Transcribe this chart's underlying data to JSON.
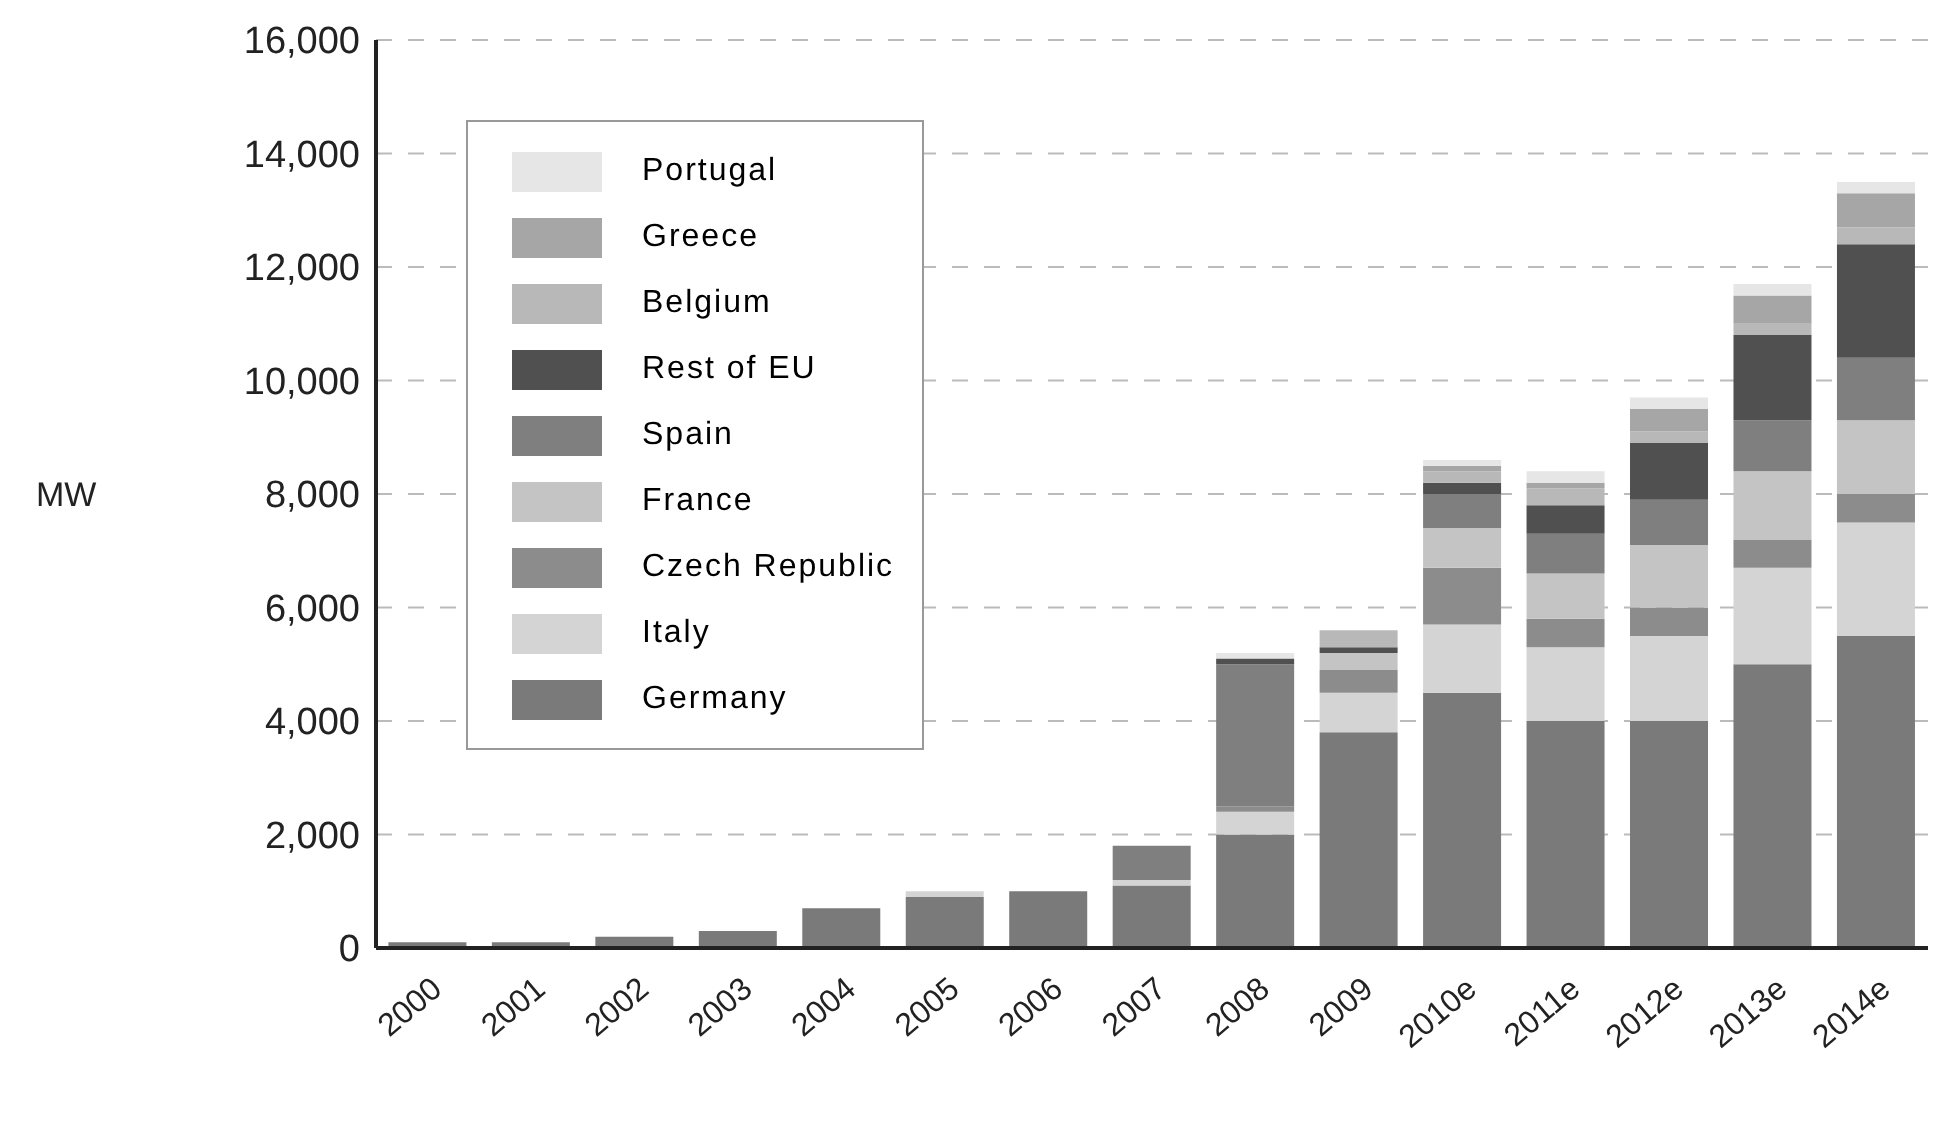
{
  "chart_data": {
    "type": "bar",
    "stacked": true,
    "ylabel": "MW",
    "categories": [
      "2000",
      "2001",
      "2002",
      "2003",
      "2004",
      "2005",
      "2006",
      "2007",
      "2008",
      "2009",
      "2010e",
      "2011e",
      "2012e",
      "2013e",
      "2014e"
    ],
    "series": [
      {
        "name": "Germany",
        "color": "#7a7a7a",
        "values": [
          100,
          100,
          200,
          300,
          700,
          900,
          1000,
          1100,
          2000,
          3800,
          4500,
          4000,
          4000,
          5000,
          5500
        ]
      },
      {
        "name": "Italy",
        "color": "#d4d4d4",
        "values": [
          0,
          0,
          0,
          0,
          0,
          100,
          0,
          100,
          400,
          700,
          1200,
          1300,
          1500,
          1700,
          2000
        ]
      },
      {
        "name": "Czech Republic",
        "color": "#8c8c8c",
        "values": [
          0,
          0,
          0,
          0,
          0,
          0,
          0,
          0,
          100,
          400,
          1000,
          500,
          500,
          500,
          500
        ]
      },
      {
        "name": "France",
        "color": "#c4c4c4",
        "values": [
          0,
          0,
          0,
          0,
          0,
          0,
          0,
          0,
          0,
          300,
          700,
          800,
          1100,
          1200,
          1300
        ]
      },
      {
        "name": "Spain",
        "color": "#7f7f7f",
        "values": [
          0,
          0,
          0,
          0,
          0,
          0,
          0,
          600,
          2500,
          0,
          600,
          700,
          800,
          900,
          1100
        ]
      },
      {
        "name": "Rest of EU",
        "color": "#505050",
        "values": [
          0,
          0,
          0,
          0,
          0,
          0,
          0,
          0,
          100,
          100,
          200,
          500,
          1000,
          1500,
          2000
        ]
      },
      {
        "name": "Belgium",
        "color": "#b8b8b8",
        "values": [
          0,
          0,
          0,
          0,
          0,
          0,
          0,
          0,
          0,
          300,
          200,
          300,
          200,
          200,
          300
        ]
      },
      {
        "name": "Greece",
        "color": "#a6a6a6",
        "values": [
          0,
          0,
          0,
          0,
          0,
          0,
          0,
          0,
          0,
          0,
          100,
          100,
          400,
          500,
          600
        ]
      },
      {
        "name": "Portugal",
        "color": "#e6e6e6",
        "values": [
          0,
          0,
          0,
          0,
          0,
          0,
          0,
          0,
          100,
          0,
          100,
          200,
          200,
          200,
          200
        ]
      }
    ],
    "ylim": [
      0,
      16000
    ],
    "yticks": [
      {
        "value": 0,
        "label": "0"
      },
      {
        "value": 2000,
        "label": "2,000"
      },
      {
        "value": 4000,
        "label": "4,000"
      },
      {
        "value": 6000,
        "label": "6,000"
      },
      {
        "value": 8000,
        "label": "8,000"
      },
      {
        "value": 10000,
        "label": "10,000"
      },
      {
        "value": 12000,
        "label": "12,000"
      },
      {
        "value": 14000,
        "label": "14,000"
      },
      {
        "value": 16000,
        "label": "16,000"
      }
    ],
    "grid": "y",
    "legend": "top left"
  }
}
